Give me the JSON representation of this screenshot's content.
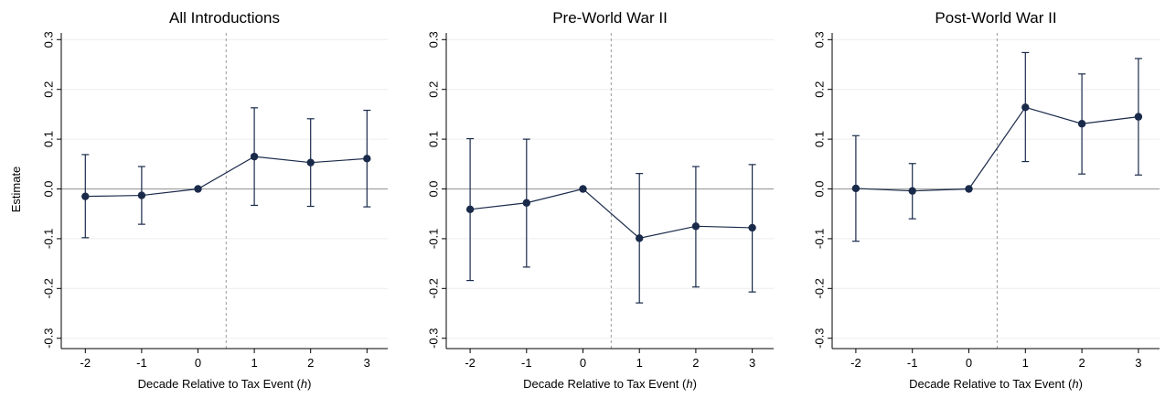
{
  "figure": {
    "ylabel": "Estimate",
    "xlabel_prefix": "Decade Relative to Tax Event (",
    "xlabel_var": "h",
    "xlabel_suffix": ")"
  },
  "colors": {
    "series": "#1a2a4a",
    "zero_line": "#a0a0a0",
    "grid": "#eeeeee",
    "vline": "#999999",
    "axis": "#000000"
  },
  "chart_data": [
    {
      "type": "line",
      "title": "All Introductions",
      "x": [
        -2,
        -1,
        0,
        1,
        2,
        3
      ],
      "x_ticks": [
        "-2",
        "-1",
        "0",
        "1",
        "2",
        "3"
      ],
      "y_ticks": [
        "-0.3",
        "-0.2",
        "-0.1",
        "0.0",
        "0.1",
        "0.2",
        "0.3"
      ],
      "ylim": [
        -0.3,
        0.3
      ],
      "vline_x": 0.5,
      "series": [
        {
          "values": [
            -0.015,
            -0.013,
            0.0,
            0.065,
            0.053,
            0.061
          ],
          "ci_low": [
            -0.098,
            -0.071,
            0.0,
            -0.033,
            -0.035,
            -0.036
          ],
          "ci_high": [
            0.069,
            0.045,
            0.0,
            0.163,
            0.141,
            0.158
          ]
        }
      ]
    },
    {
      "type": "line",
      "title": "Pre-World War II",
      "x": [
        -2,
        -1,
        0,
        1,
        2,
        3
      ],
      "x_ticks": [
        "-2",
        "-1",
        "0",
        "1",
        "2",
        "3"
      ],
      "y_ticks": [
        "-0.3",
        "-0.2",
        "-0.1",
        "0.0",
        "0.1",
        "0.2",
        "0.3"
      ],
      "ylim": [
        -0.3,
        0.3
      ],
      "vline_x": 0.5,
      "series": [
        {
          "values": [
            -0.041,
            -0.028,
            0.0,
            -0.099,
            -0.075,
            -0.078
          ],
          "ci_low": [
            -0.184,
            -0.157,
            0.0,
            -0.229,
            -0.197,
            -0.207
          ],
          "ci_high": [
            0.101,
            0.1,
            0.0,
            0.031,
            0.045,
            0.049
          ]
        }
      ]
    },
    {
      "type": "line",
      "title": "Post-World War II",
      "x": [
        -2,
        -1,
        0,
        1,
        2,
        3
      ],
      "x_ticks": [
        "-2",
        "-1",
        "0",
        "1",
        "2",
        "3"
      ],
      "y_ticks": [
        "-0.3",
        "-0.2",
        "-0.1",
        "0.0",
        "0.1",
        "0.2",
        "0.3"
      ],
      "ylim": [
        -0.3,
        0.3
      ],
      "vline_x": 0.5,
      "series": [
        {
          "values": [
            0.001,
            -0.004,
            0.0,
            0.164,
            0.131,
            0.145
          ],
          "ci_low": [
            -0.105,
            -0.06,
            0.0,
            0.055,
            0.03,
            0.028
          ],
          "ci_high": [
            0.107,
            0.051,
            0.0,
            0.274,
            0.231,
            0.262
          ]
        }
      ]
    }
  ]
}
